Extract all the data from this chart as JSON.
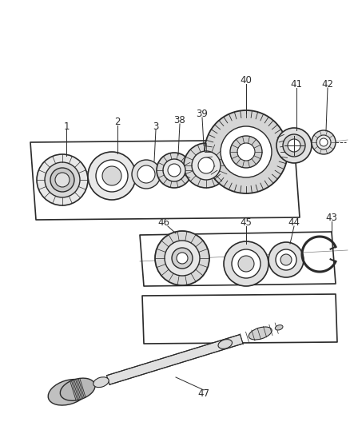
{
  "background_color": "#ffffff",
  "line_color": "#2a2a2a",
  "label_color": "#2a2a2a",
  "figsize": [
    4.39,
    5.33
  ],
  "dpi": 100,
  "label_fs": 8.5
}
